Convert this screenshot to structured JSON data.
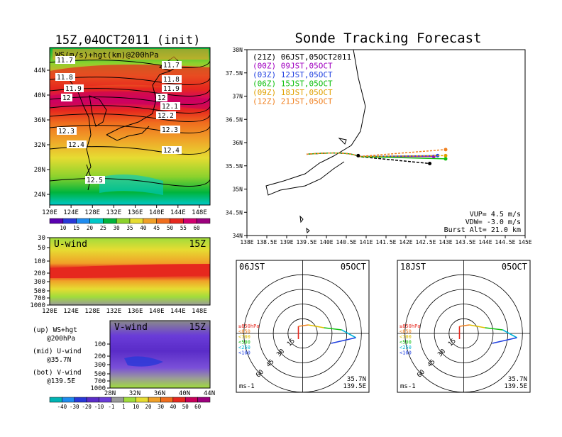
{
  "left_title": "15Z,04OCT2011 (init)",
  "main_title": "Sonde Tracking Forecast",
  "map_panel": {
    "label": "WS(m/s)+hgt(km)@200hPa",
    "xticks": [
      "120E",
      "124E",
      "128E",
      "132E",
      "136E",
      "140E",
      "144E",
      "148E"
    ],
    "yticks": [
      "44N",
      "40N",
      "36N",
      "32N",
      "28N",
      "24N"
    ],
    "contour_labels": [
      "11.7",
      "11.7",
      "11.8",
      "11.8",
      "11.9",
      "11.9",
      "12",
      "12",
      "12.1",
      "12.2",
      "12.3",
      "12.3",
      "12.4",
      "12.4",
      "12.5"
    ]
  },
  "colorbar_top": {
    "labels": [
      "10",
      "15",
      "20",
      "25",
      "30",
      "35",
      "40",
      "45",
      "50",
      "55",
      "60"
    ],
    "colors": [
      "#5a00b0",
      "#2838d8",
      "#1e8cf0",
      "#00c8c8",
      "#00b43c",
      "#8cd22d",
      "#e6dc32",
      "#f0a028",
      "#f06e1e",
      "#e6281e",
      "#d2006e",
      "#9c007d"
    ]
  },
  "uwind_panel": {
    "label": "U-wind",
    "time": "15Z",
    "yticks": [
      "30",
      "50",
      "100",
      "200",
      "300",
      "500",
      "700",
      "1000"
    ],
    "xticks": [
      "120E",
      "124E",
      "128E",
      "132E",
      "136E",
      "140E",
      "144E",
      "148E"
    ]
  },
  "vwind_panel": {
    "label": "V-wind",
    "time": "15Z",
    "yticks": [
      "100",
      "200",
      "300",
      "500",
      "700",
      "1000"
    ],
    "xticks": [
      "28N",
      "32N",
      "36N",
      "40N",
      "44N"
    ]
  },
  "legend_notes": [
    [
      "(up) WS+hgt",
      "@200hPa"
    ],
    [
      "(mid) U-wind",
      "@35.7N"
    ],
    [
      "(bot) V-wind",
      "@139.5E"
    ]
  ],
  "colorbar_bottom": {
    "labels": [
      "-40",
      "-30",
      "-20",
      "-10",
      "-1",
      "1",
      "10",
      "20",
      "30",
      "40",
      "50",
      "60"
    ],
    "colors": [
      "#00b4b4",
      "#1e8cf0",
      "#2838d8",
      "#5a2cc8",
      "#6a3cd8",
      "#9a9a9a",
      "#a0dc3c",
      "#e6dc32",
      "#f0a028",
      "#f06e1e",
      "#e6281e",
      "#c8005a",
      "#9c007d"
    ]
  },
  "track_panel": {
    "xticks": [
      "138E",
      "138.5E",
      "139E",
      "139.5E",
      "140E",
      "140.5E",
      "141E",
      "141.5E",
      "142E",
      "142.5E",
      "143E",
      "143.5E",
      "144E",
      "144.5E",
      "145E"
    ],
    "yticks": [
      "38N",
      "37.5N",
      "37N",
      "36.5N",
      "36N",
      "35.5N",
      "35N",
      "34.5N",
      "34N"
    ],
    "legend": [
      {
        "text": "(21Z) 06JST,05OCT2011",
        "color": "#000000"
      },
      {
        "text": "(00Z) 09JST,05OCT",
        "color": "#a000c0"
      },
      {
        "text": "(03Z) 12JST,05OCT",
        "color": "#2040e0"
      },
      {
        "text": "(06Z) 15JST,05OCT",
        "color": "#10c010"
      },
      {
        "text": "(09Z) 18JST,05OCT",
        "color": "#e0a000"
      },
      {
        "text": "(12Z) 21JST,05OCT",
        "color": "#f08020"
      }
    ],
    "params": [
      "VUP= 4.5 m/s",
      "VDW= -3.0 m/s",
      "Burst Alt= 21.0 km"
    ]
  },
  "hodo_left": {
    "title": "06JST",
    "date": "05OCT",
    "ring_labels": [
      "15",
      "30",
      "45",
      "60"
    ],
    "levels": [
      "≥850hPa",
      "<850",
      "<700",
      "<500",
      "<250",
      "<100"
    ],
    "unit": "ms-1",
    "pos": [
      "35.7N",
      "139.5E"
    ]
  },
  "hodo_right": {
    "title": "18JST",
    "date": "05OCT",
    "ring_labels": [
      "15",
      "30",
      "45",
      "60"
    ],
    "levels": [
      "≥850hPa",
      "<850",
      "<700",
      "<500",
      "<250",
      "<100"
    ],
    "unit": "ms-1",
    "pos": [
      "35.7N",
      "139.5E"
    ]
  },
  "chart_data": [
    {
      "type": "heatmap",
      "title": "WS(m/s)+hgt(km)@200hPa",
      "x_range": [
        "120E",
        "150E"
      ],
      "y_range": [
        "22N",
        "47N"
      ],
      "contour_levels_km": [
        11.7,
        11.8,
        11.9,
        12.0,
        12.1,
        12.2,
        12.3,
        12.4,
        12.5
      ],
      "colorbar_ms": [
        10,
        15,
        20,
        25,
        30,
        35,
        40,
        45,
        50,
        55,
        60
      ]
    },
    {
      "type": "heatmap",
      "title": "U-wind",
      "y_levels_hPa": [
        30,
        50,
        100,
        200,
        300,
        500,
        700,
        1000
      ],
      "x_ticks": [
        "120E",
        "124E",
        "128E",
        "132E",
        "136E",
        "140E",
        "144E",
        "148E"
      ]
    },
    {
      "type": "heatmap",
      "title": "V-wind",
      "y_levels_hPa": [
        100,
        200,
        300,
        500,
        700,
        1000
      ],
      "x_ticks": [
        "28N",
        "32N",
        "36N",
        "40N",
        "44N"
      ]
    },
    {
      "type": "line",
      "title": "Sonde Tracking Forecast",
      "xlim": [
        138,
        145
      ],
      "ylim": [
        34,
        38
      ],
      "series": [
        {
          "name": "(21Z) 06JST,05OCT2011",
          "end": [
            142.6,
            35.55
          ]
        },
        {
          "name": "(00Z) 09JST,05OCT",
          "end": [
            142.7,
            35.7
          ]
        },
        {
          "name": "(03Z) 12JST,05OCT",
          "end": [
            142.8,
            35.72
          ]
        },
        {
          "name": "(06Z) 15JST,05OCT",
          "end": [
            143.0,
            35.65
          ]
        },
        {
          "name": "(09Z) 18JST,05OCT",
          "end": [
            143.0,
            35.72
          ]
        },
        {
          "name": "(12Z) 21JST,05OCT",
          "end": [
            143.0,
            35.85
          ]
        }
      ]
    }
  ]
}
